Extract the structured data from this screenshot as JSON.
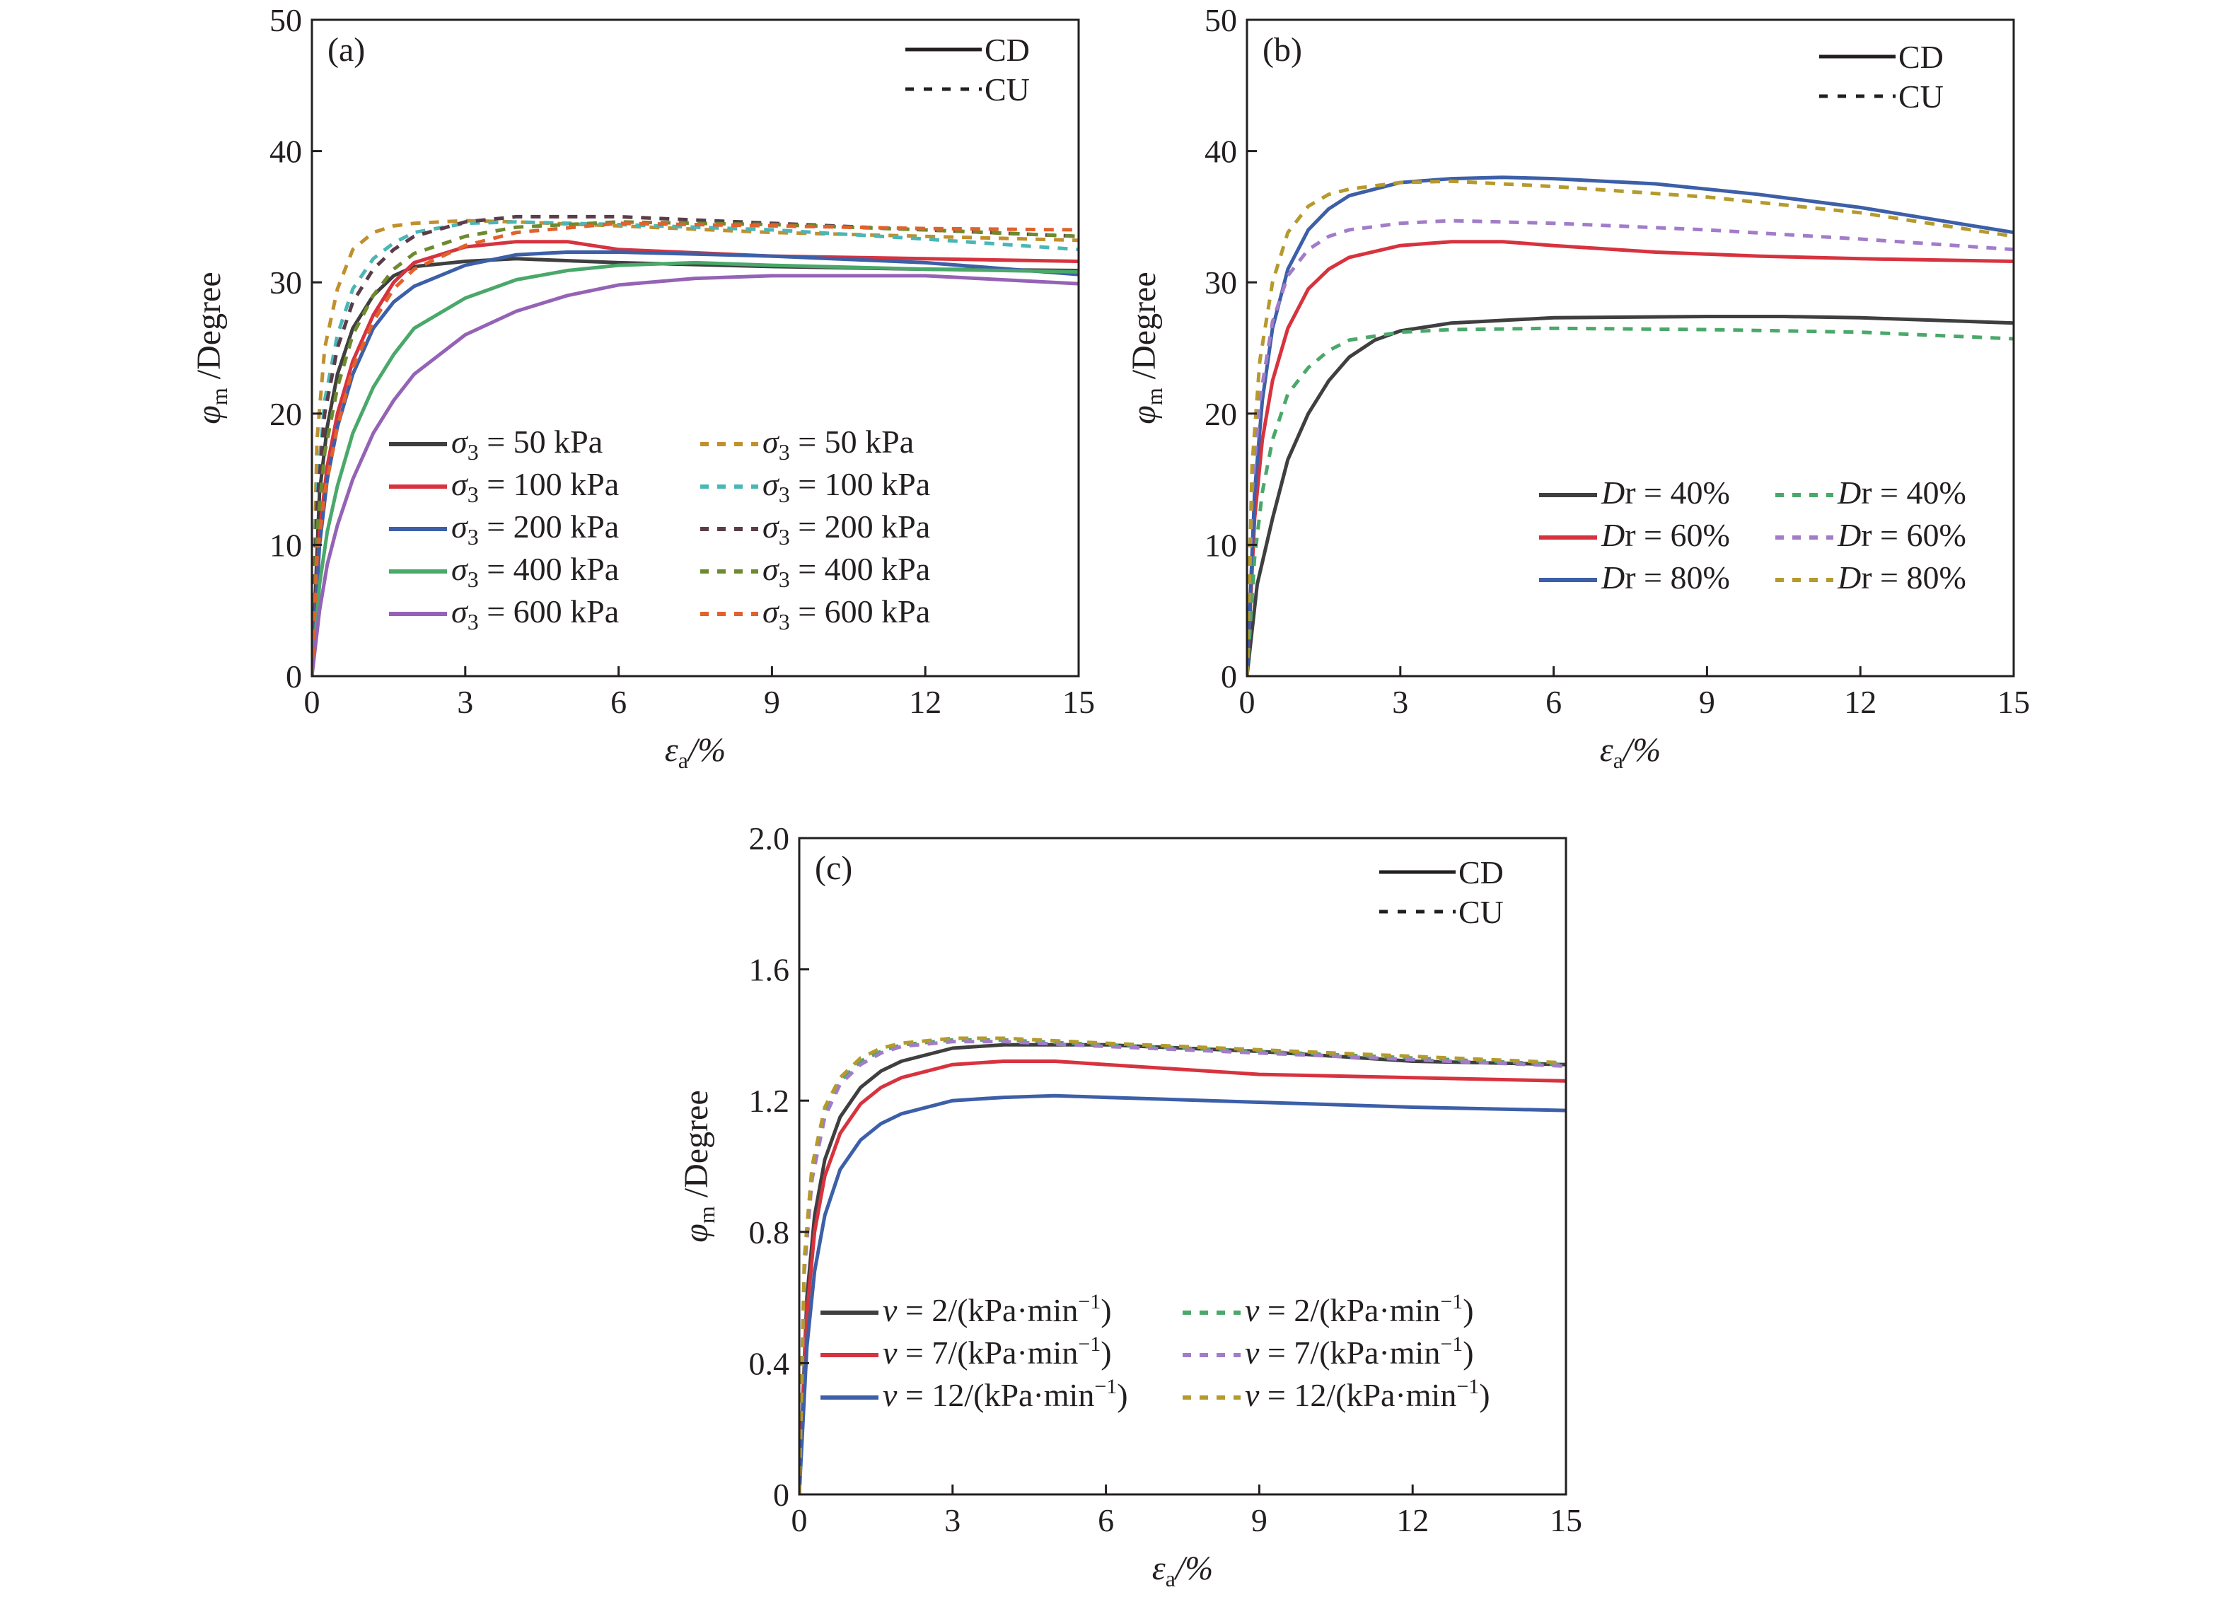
{
  "chart_data": [
    {
      "panel": "(a)",
      "type": "line",
      "xlabel": "εa/%",
      "ylabel": "φm /Degree",
      "xlim": [
        0,
        15
      ],
      "ylim": [
        0,
        50
      ],
      "xticks": [
        "0",
        "3",
        "6",
        "9",
        "12",
        "15"
      ],
      "yticks": [
        "0",
        "10",
        "20",
        "30",
        "40",
        "50"
      ],
      "style_legend": [
        {
          "label": "CD",
          "dash": "solid"
        },
        {
          "label": "CU",
          "dash": "dashed"
        }
      ],
      "legend_placement": "bottom-center, two columns",
      "series": [
        {
          "name": "σ3 = 50 kPa",
          "sym": "σ",
          "sub": "3",
          "rest": " = 50 kPa",
          "test": "CD",
          "color": "#3f3f3f",
          "dash": "solid",
          "x": [
            0,
            0.15,
            0.3,
            0.5,
            0.8,
            1.2,
            1.6,
            2.0,
            3.0,
            4.0,
            6.0,
            9.0,
            12.0,
            15.0
          ],
          "y": [
            0,
            14,
            19,
            23,
            26.5,
            29,
            30.5,
            31.2,
            31.6,
            31.8,
            31.5,
            31.2,
            31.0,
            30.9
          ]
        },
        {
          "name": "σ3 = 100 kPa",
          "sym": "σ",
          "sub": "3",
          "rest": " = 100 kPa",
          "test": "CD",
          "color": "#d7333f",
          "dash": "solid",
          "x": [
            0,
            0.15,
            0.3,
            0.5,
            0.8,
            1.2,
            1.6,
            2.0,
            3.0,
            4.0,
            5.0,
            6.0,
            9.0,
            12.0,
            15.0
          ],
          "y": [
            0,
            11,
            16,
            20,
            24,
            27.5,
            30,
            31.5,
            32.7,
            33.1,
            33.1,
            32.5,
            32.0,
            31.8,
            31.6
          ]
        },
        {
          "name": "σ3 = 200 kPa",
          "sym": "σ",
          "sub": "3",
          "rest": " = 200 kPa",
          "test": "CD",
          "color": "#3c5fa8",
          "dash": "solid",
          "x": [
            0,
            0.15,
            0.3,
            0.5,
            0.8,
            1.2,
            1.6,
            2.0,
            3.0,
            4.0,
            5.0,
            6.0,
            9.0,
            12.0,
            15.0
          ],
          "y": [
            0,
            10,
            15,
            19,
            23,
            26.5,
            28.5,
            29.7,
            31.3,
            32.1,
            32.3,
            32.3,
            32.0,
            31.5,
            30.6
          ]
        },
        {
          "name": "σ3 = 400 kPa",
          "sym": "σ",
          "sub": "3",
          "rest": " = 400 kPa",
          "test": "CD",
          "color": "#4aa86a",
          "dash": "solid",
          "x": [
            0,
            0.15,
            0.3,
            0.5,
            0.8,
            1.2,
            1.6,
            2.0,
            3.0,
            4.0,
            5.0,
            6.0,
            7.5,
            9.0,
            12.0,
            15.0
          ],
          "y": [
            0,
            7,
            11,
            14.5,
            18.5,
            22,
            24.5,
            26.5,
            28.8,
            30.2,
            30.9,
            31.3,
            31.5,
            31.3,
            31.0,
            30.8
          ]
        },
        {
          "name": "σ3 = 600 kPa",
          "sym": "σ",
          "sub": "3",
          "rest": " = 600 kPa",
          "test": "CD",
          "color": "#9563b5",
          "dash": "solid",
          "x": [
            0,
            0.15,
            0.3,
            0.5,
            0.8,
            1.2,
            1.6,
            2.0,
            3.0,
            4.0,
            5.0,
            6.0,
            7.5,
            9.0,
            12.0,
            15.0
          ],
          "y": [
            0,
            5,
            8.5,
            11.5,
            15,
            18.5,
            21,
            23,
            26,
            27.8,
            29,
            29.8,
            30.3,
            30.5,
            30.5,
            29.9
          ]
        },
        {
          "name": "σ3 = 50 kPa",
          "sym": "σ",
          "sub": "3",
          "rest": " = 50 kPa",
          "test": "CU",
          "color": "#c0902e",
          "dash": "dashed",
          "x": [
            0,
            0.1,
            0.25,
            0.5,
            0.8,
            1.2,
            1.6,
            2.0,
            3.0,
            4.0,
            6.0,
            9.0,
            12.0,
            15.0
          ],
          "y": [
            0,
            18,
            25,
            29.5,
            32.5,
            33.8,
            34.3,
            34.5,
            34.7,
            34.6,
            34.3,
            33.8,
            33.5,
            33.2
          ]
        },
        {
          "name": "σ3 = 100 kPa",
          "sym": "σ",
          "sub": "3",
          "rest": " = 100 kPa",
          "test": "CU",
          "color": "#4ab6b6",
          "dash": "dashed",
          "x": [
            0,
            0.1,
            0.25,
            0.5,
            0.8,
            1.2,
            1.6,
            2.0,
            3.0,
            4.0,
            6.0,
            9.0,
            12.0,
            15.0
          ],
          "y": [
            0,
            14,
            21,
            26,
            29.5,
            31.8,
            33,
            33.8,
            34.5,
            34.6,
            34.4,
            34.0,
            33.3,
            32.5
          ]
        },
        {
          "name": "σ3 = 200 kPa",
          "sym": "σ",
          "sub": "3",
          "rest": " = 200 kPa",
          "test": "CU",
          "color": "#5b3d4a",
          "dash": "dashed",
          "x": [
            0,
            0.1,
            0.25,
            0.5,
            0.8,
            1.2,
            1.6,
            2.0,
            3.0,
            4.0,
            6.0,
            9.0,
            12.0,
            15.0
          ],
          "y": [
            0,
            13,
            20,
            25,
            28.5,
            31,
            32.5,
            33.5,
            34.6,
            35.0,
            35.0,
            34.5,
            34.0,
            33.5
          ]
        },
        {
          "name": "σ3 = 400 kPa",
          "sym": "σ",
          "sub": "3",
          "rest": " = 400 kPa",
          "test": "CU",
          "color": "#6e8a2e",
          "dash": "dashed",
          "x": [
            0,
            0.1,
            0.25,
            0.5,
            0.8,
            1.2,
            1.6,
            2.0,
            3.0,
            4.0,
            6.0,
            9.0,
            12.0,
            15.0
          ],
          "y": [
            0,
            11,
            17,
            22,
            26,
            29,
            31,
            32.2,
            33.5,
            34.2,
            34.6,
            34.4,
            34.0,
            33.5
          ]
        },
        {
          "name": "σ3 = 600 kPa",
          "sym": "σ",
          "sub": "3",
          "rest": " = 600 kPa",
          "test": "CU",
          "color": "#e0622c",
          "dash": "dashed",
          "x": [
            0,
            0.1,
            0.25,
            0.5,
            0.8,
            1.2,
            1.6,
            2.0,
            3.0,
            4.0,
            6.0,
            9.0,
            12.0,
            15.0
          ],
          "y": [
            0,
            9,
            14,
            19,
            23.5,
            27,
            29.5,
            31,
            32.8,
            33.8,
            34.5,
            34.3,
            34.1,
            34.0
          ]
        }
      ]
    },
    {
      "panel": "(b)",
      "type": "line",
      "xlabel": "εa/%",
      "ylabel": "φm /Degree",
      "xlim": [
        0,
        15
      ],
      "ylim": [
        0,
        50
      ],
      "xticks": [
        "0",
        "3",
        "6",
        "9",
        "12",
        "15"
      ],
      "yticks": [
        "0",
        "10",
        "20",
        "30",
        "40",
        "50"
      ],
      "style_legend": [
        {
          "label": "CD",
          "dash": "solid"
        },
        {
          "label": "CU",
          "dash": "dashed"
        }
      ],
      "legend_placement": "bottom-right, two columns",
      "series": [
        {
          "name": "Dr = 40%",
          "sym": "D",
          "sub": "",
          "rest": "r = 40%",
          "test": "CD",
          "color": "#3f3f3f",
          "dash": "solid",
          "x": [
            0,
            0.2,
            0.5,
            0.8,
            1.2,
            1.6,
            2.0,
            2.5,
            3.0,
            4.0,
            6.0,
            9.0,
            10.5,
            12.0,
            15.0
          ],
          "y": [
            0,
            7,
            12,
            16.5,
            20,
            22.5,
            24.3,
            25.6,
            26.3,
            26.9,
            27.3,
            27.4,
            27.4,
            27.3,
            26.9
          ]
        },
        {
          "name": "Dr = 60%",
          "sym": "D",
          "sub": "",
          "rest": "r = 60%",
          "test": "CD",
          "color": "#d7333f",
          "dash": "solid",
          "x": [
            0,
            0.15,
            0.3,
            0.5,
            0.8,
            1.2,
            1.6,
            2.0,
            3.0,
            4.0,
            5.0,
            6.0,
            8.0,
            10.0,
            12.0,
            15.0
          ],
          "y": [
            0,
            12,
            18,
            22.5,
            26.5,
            29.5,
            31,
            31.9,
            32.8,
            33.1,
            33.1,
            32.8,
            32.3,
            32.0,
            31.8,
            31.6
          ]
        },
        {
          "name": "Dr = 80%",
          "sym": "D",
          "sub": "",
          "rest": "r = 80%",
          "test": "CD",
          "color": "#3c5fa8",
          "dash": "solid",
          "x": [
            0,
            0.15,
            0.3,
            0.5,
            0.8,
            1.2,
            1.6,
            2.0,
            3.0,
            4.0,
            5.0,
            6.0,
            8.0,
            10.0,
            12.0,
            15.0
          ],
          "y": [
            0,
            14,
            21,
            26.5,
            31,
            34,
            35.6,
            36.6,
            37.6,
            37.9,
            38.0,
            37.9,
            37.5,
            36.7,
            35.7,
            33.8
          ]
        },
        {
          "name": "Dr = 40%",
          "sym": "D",
          "sub": "",
          "rest": "r = 40%",
          "test": "CU",
          "color": "#4aa86a",
          "dash": "dashed",
          "x": [
            0,
            0.15,
            0.3,
            0.5,
            0.8,
            1.2,
            1.6,
            2.0,
            3.0,
            4.0,
            6.0,
            9.0,
            12.0,
            15.0
          ],
          "y": [
            0,
            9,
            14,
            18,
            21.5,
            23.5,
            24.8,
            25.6,
            26.2,
            26.4,
            26.5,
            26.4,
            26.2,
            25.7
          ]
        },
        {
          "name": "Dr = 60%",
          "sym": "D",
          "sub": "",
          "rest": "r = 60%",
          "test": "CU",
          "color": "#a27cc9",
          "dash": "dashed",
          "x": [
            0,
            0.1,
            0.25,
            0.5,
            0.8,
            1.2,
            1.6,
            2.0,
            3.0,
            4.0,
            6.0,
            9.0,
            12.0,
            15.0
          ],
          "y": [
            0,
            14,
            21,
            27,
            30.5,
            32.5,
            33.5,
            34.0,
            34.5,
            34.7,
            34.5,
            34.0,
            33.3,
            32.5
          ]
        },
        {
          "name": "Dr = 80%",
          "sym": "D",
          "sub": "",
          "rest": "r = 80%",
          "test": "CU",
          "color": "#b59a2c",
          "dash": "dashed",
          "x": [
            0,
            0.1,
            0.25,
            0.5,
            0.8,
            1.2,
            1.6,
            2.0,
            3.0,
            4.0,
            6.0,
            9.0,
            12.0,
            15.0
          ],
          "y": [
            0,
            16,
            24,
            30,
            33.8,
            35.8,
            36.7,
            37.1,
            37.6,
            37.7,
            37.3,
            36.5,
            35.3,
            33.5
          ]
        }
      ]
    },
    {
      "panel": "(c)",
      "type": "line",
      "xlabel": "εa/%",
      "ylabel": "φm /Degree",
      "xlim": [
        0,
        15
      ],
      "ylim": [
        0,
        2.0
      ],
      "xticks": [
        "0",
        "3",
        "6",
        "9",
        "12",
        "15"
      ],
      "yticks": [
        "0",
        "0.4",
        "0.8",
        "1.2",
        "1.6",
        "2.0"
      ],
      "style_legend": [
        {
          "label": "CD",
          "dash": "solid"
        },
        {
          "label": "CU",
          "dash": "dashed"
        }
      ],
      "legend_placement": "bottom-center, two columns",
      "series": [
        {
          "name": "v = 2/(kPa·min−1)",
          "sym": "v",
          "sub": "",
          "rest": " = 2/(kPa·min",
          "sup": "−1",
          "close": ")",
          "test": "CD",
          "color": "#3f3f3f",
          "dash": "solid",
          "x": [
            0,
            0.15,
            0.3,
            0.5,
            0.8,
            1.2,
            1.6,
            2.0,
            3.0,
            4.0,
            6.0,
            9.0,
            12.0,
            15.0
          ],
          "y": [
            0,
            0.6,
            0.85,
            1.02,
            1.15,
            1.24,
            1.29,
            1.32,
            1.36,
            1.37,
            1.37,
            1.35,
            1.32,
            1.31
          ]
        },
        {
          "name": "v = 7/(kPa·min−1)",
          "sym": "v",
          "sub": "",
          "rest": " = 7/(kPa·min",
          "sup": "−1",
          "close": ")",
          "test": "CD",
          "color": "#d7333f",
          "dash": "solid",
          "x": [
            0,
            0.15,
            0.3,
            0.5,
            0.8,
            1.2,
            1.6,
            2.0,
            3.0,
            4.0,
            5.0,
            6.0,
            9.0,
            12.0,
            15.0
          ],
          "y": [
            0,
            0.55,
            0.8,
            0.97,
            1.1,
            1.19,
            1.24,
            1.27,
            1.31,
            1.32,
            1.32,
            1.31,
            1.28,
            1.27,
            1.26
          ]
        },
        {
          "name": "v = 12/(kPa·min−1)",
          "sym": "v",
          "sub": "",
          "rest": " = 12/(kPa·min",
          "sup": "−1",
          "close": ")",
          "test": "CD",
          "color": "#3c5fa8",
          "dash": "solid",
          "x": [
            0,
            0.15,
            0.3,
            0.5,
            0.8,
            1.2,
            1.6,
            2.0,
            3.0,
            4.0,
            5.0,
            6.0,
            9.0,
            12.0,
            15.0
          ],
          "y": [
            0,
            0.45,
            0.68,
            0.85,
            0.99,
            1.08,
            1.13,
            1.16,
            1.2,
            1.21,
            1.215,
            1.21,
            1.195,
            1.18,
            1.17
          ]
        },
        {
          "name": "v = 2/(kPa·min−1)",
          "sym": "v",
          "sub": "",
          "rest": " = 2/(kPa·min",
          "sup": "−1",
          "close": ")",
          "test": "CU",
          "color": "#4aa86a",
          "dash": "dashed",
          "x": [
            0,
            0.1,
            0.25,
            0.5,
            0.8,
            1.2,
            1.6,
            2.0,
            3.0,
            4.0,
            6.0,
            9.0,
            12.0,
            15.0
          ],
          "y": [
            0,
            0.7,
            0.98,
            1.16,
            1.26,
            1.32,
            1.35,
            1.37,
            1.385,
            1.385,
            1.37,
            1.35,
            1.33,
            1.31
          ]
        },
        {
          "name": "v = 7/(kPa·min−1)",
          "sym": "v",
          "sub": "",
          "rest": " = 7/(kPa·min",
          "sup": "−1",
          "close": ")",
          "test": "CU",
          "color": "#a27cc9",
          "dash": "dashed",
          "x": [
            0,
            0.1,
            0.25,
            0.5,
            0.8,
            1.2,
            1.6,
            2.0,
            3.0,
            4.0,
            6.0,
            9.0,
            12.0,
            15.0
          ],
          "y": [
            0,
            0.68,
            0.96,
            1.15,
            1.25,
            1.31,
            1.345,
            1.365,
            1.38,
            1.38,
            1.365,
            1.345,
            1.325,
            1.305
          ]
        },
        {
          "name": "v = 12/(kPa·min−1)",
          "sym": "v",
          "sub": "",
          "rest": " = 12/(kPa·min",
          "sup": "−1",
          "close": ")",
          "test": "CU",
          "color": "#b59a2c",
          "dash": "dashed",
          "x": [
            0,
            0.1,
            0.25,
            0.5,
            0.8,
            1.2,
            1.6,
            2.0,
            3.0,
            4.0,
            6.0,
            9.0,
            12.0,
            15.0
          ],
          "y": [
            0,
            0.72,
            1.0,
            1.18,
            1.27,
            1.33,
            1.36,
            1.375,
            1.39,
            1.39,
            1.375,
            1.355,
            1.335,
            1.315
          ]
        }
      ]
    }
  ]
}
